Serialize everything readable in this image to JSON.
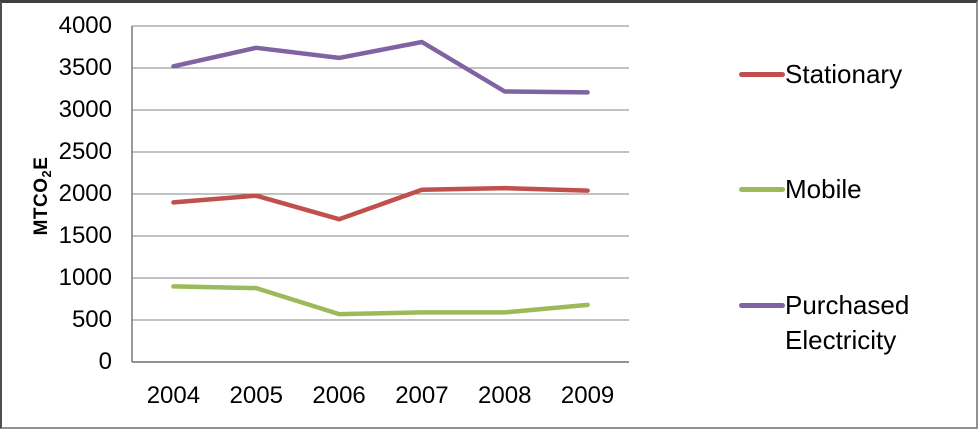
{
  "window": {
    "background": "#ffffff",
    "border_color": "#808080"
  },
  "chart_data": {
    "type": "line",
    "title": "",
    "xlabel": "",
    "ylabel": "MTCO2E",
    "ylabel_parts": {
      "prefix": "MTCO",
      "sub": "2",
      "suffix": "E"
    },
    "categories": [
      "2004",
      "2005",
      "2006",
      "2007",
      "2008",
      "2009"
    ],
    "series": [
      {
        "name": "Stationary",
        "color": "#C0504D",
        "values": [
          1900,
          1980,
          1700,
          2050,
          2070,
          2040
        ]
      },
      {
        "name": "Mobile",
        "color": "#9BBB59",
        "values": [
          900,
          880,
          570,
          590,
          590,
          680
        ]
      },
      {
        "name": "Purchased Electricity",
        "color": "#8064A2",
        "values": [
          3520,
          3740,
          3620,
          3810,
          3220,
          3210
        ]
      }
    ],
    "ylim": [
      0,
      4000
    ],
    "ytick_step": 500,
    "yticks": [
      "0",
      "500",
      "1000",
      "1500",
      "2000",
      "2500",
      "3000",
      "3500",
      "4000"
    ],
    "grid": "horizontal",
    "legend_position": "right",
    "gridline_color": "#858585",
    "axis_color": "#6f6f6f",
    "line_width": 4.5
  }
}
